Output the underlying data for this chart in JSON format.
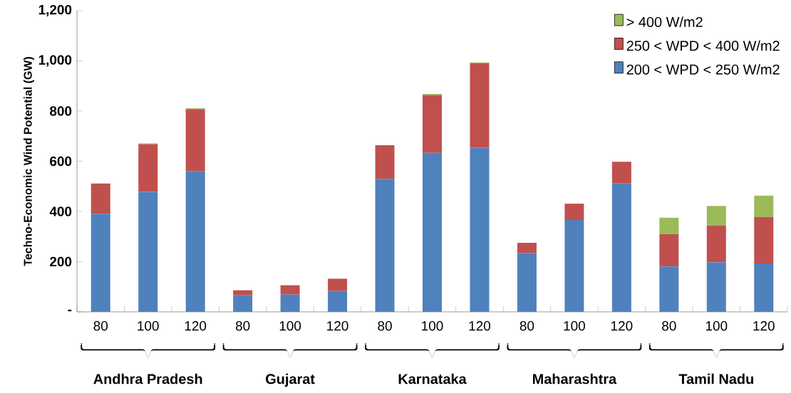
{
  "chart_data": {
    "type": "bar",
    "stacked": true,
    "ylabel": "Techno-Economic  Wind Potential (GW)",
    "categories": [
      "80",
      "100",
      "120",
      "80",
      "100",
      "120",
      "80",
      "100",
      "120",
      "80",
      "100",
      "120",
      "80",
      "100",
      "120"
    ],
    "annotations": [
      "Andhra Pradesh",
      "Gujarat",
      "Karnataka",
      "Maharashtra",
      "Tamil Nadu"
    ],
    "series": [
      {
        "name": "200 < WPD < 250 W/m2",
        "color": "#4f81bd",
        "values": [
          391,
          478,
          561,
          66,
          69,
          83,
          530,
          633,
          654,
          235,
          366,
          513,
          181,
          197,
          193
        ]
      },
      {
        "name": "250 < WPD < 400 W/m2",
        "color": "#c0504d",
        "values": [
          120,
          190,
          247,
          20,
          37,
          49,
          134,
          231,
          337,
          40,
          65,
          85,
          129,
          148,
          185
        ]
      },
      {
        "name": "> 400 W/m2",
        "color": "#9bbb59",
        "values": [
          0,
          3,
          3,
          0,
          0,
          0,
          0,
          4,
          3,
          0,
          0,
          0,
          65,
          77,
          85
        ]
      }
    ],
    "ylim": [
      0,
      1200
    ],
    "yticks": [
      {
        "value": 0,
        "label": "-"
      },
      {
        "value": 200,
        "label": "200"
      },
      {
        "value": 400,
        "label": "400"
      },
      {
        "value": 600,
        "label": "600"
      },
      {
        "value": 800,
        "label": "800"
      },
      {
        "value": 1000,
        "label": "1,000"
      },
      {
        "value": 1200,
        "label": "1,200"
      }
    ],
    "legend": "top right",
    "grid": false
  }
}
